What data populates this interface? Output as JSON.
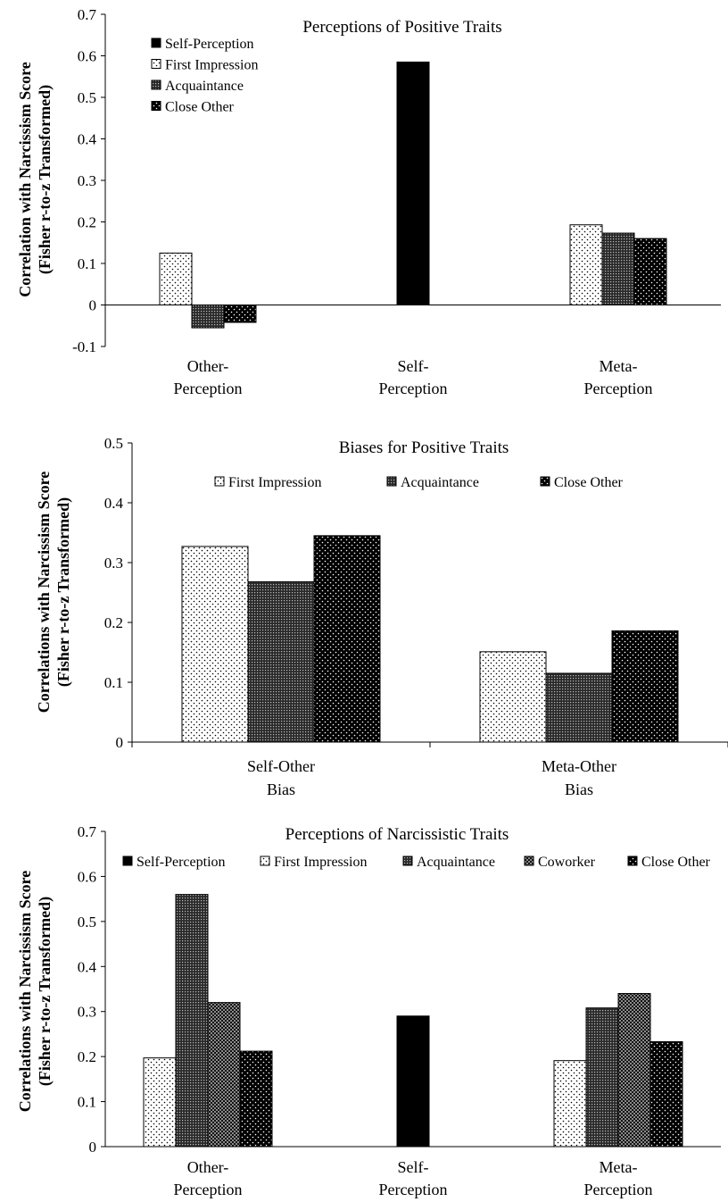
{
  "patterns": {
    "Self-Perception": "solid",
    "First Impression": "sparse-dots",
    "Acquaintance": "dense-grid",
    "Coworker": "checker",
    "Close Other": "white-dots"
  },
  "chart_data": [
    {
      "type": "bar",
      "title": "Perceptions of Positive Traits",
      "ylabel": [
        "Correlation with Narcissism Score",
        "(Fisher r-to-z Transformed)"
      ],
      "xlabel": "",
      "ylim": [
        -0.1,
        0.7
      ],
      "yticks": [
        -0.1,
        0,
        0.1,
        0.2,
        0.3,
        0.4,
        0.5,
        0.6,
        0.7
      ],
      "yticklabels": [
        "-0.1",
        "0",
        "0.1",
        "0.2",
        "0.3",
        "0.4",
        "0.5",
        "0.6",
        "0.7"
      ],
      "categories": [
        [
          "Other-",
          "Perception"
        ],
        [
          "Self-",
          "Perception"
        ],
        [
          "Meta-",
          "Perception"
        ]
      ],
      "legend": [
        "Self-Perception",
        "First Impression",
        "Acquaintance",
        "Close Other"
      ],
      "legend_placement": "top-left, stacked",
      "grid": false,
      "groups": [
        [
          {
            "series": "First Impression",
            "value": 0.125
          },
          {
            "series": "Acquaintance",
            "value": -0.055
          },
          {
            "series": "Close Other",
            "value": -0.042
          }
        ],
        [
          {
            "series": "Self-Perception",
            "value": 0.585
          }
        ],
        [
          {
            "series": "First Impression",
            "value": 0.193
          },
          {
            "series": "Acquaintance",
            "value": 0.173
          },
          {
            "series": "Close Other",
            "value": 0.16
          }
        ]
      ]
    },
    {
      "type": "bar",
      "title": "Biases for Positive Traits",
      "ylabel": [
        "Correlations with Narcissism Score",
        "(Fisher r-to-z Transformed)"
      ],
      "xlabel": "",
      "ylim": [
        0,
        0.5
      ],
      "yticks": [
        0,
        0.1,
        0.2,
        0.3,
        0.4,
        0.5
      ],
      "yticklabels": [
        "0",
        "0.1",
        "0.2",
        "0.3",
        "0.4",
        "0.5"
      ],
      "categories": [
        [
          "Self-Other",
          "Bias"
        ],
        [
          "Meta-Other",
          "Bias"
        ]
      ],
      "legend": [
        "First Impression",
        "Acquaintance",
        "Close Other"
      ],
      "legend_placement": "top, horizontal",
      "grid": false,
      "groups": [
        [
          {
            "series": "First Impression",
            "value": 0.327
          },
          {
            "series": "Acquaintance",
            "value": 0.268
          },
          {
            "series": "Close Other",
            "value": 0.345
          }
        ],
        [
          {
            "series": "First Impression",
            "value": 0.151
          },
          {
            "series": "Acquaintance",
            "value": 0.115
          },
          {
            "series": "Close Other",
            "value": 0.186
          }
        ]
      ]
    },
    {
      "type": "bar",
      "title": "Perceptions of Narcissistic Traits",
      "ylabel": [
        "Correlations with Narcissism Score",
        "(Fisher r-to-z Transformed)"
      ],
      "xlabel": "",
      "ylim": [
        0,
        0.7
      ],
      "yticks": [
        0,
        0.1,
        0.2,
        0.3,
        0.4,
        0.5,
        0.6,
        0.7
      ],
      "yticklabels": [
        "0",
        "0.1",
        "0.2",
        "0.3",
        "0.4",
        "0.5",
        "0.6",
        "0.7"
      ],
      "categories": [
        [
          "Other-",
          "Perception"
        ],
        [
          "Self-",
          "Perception"
        ],
        [
          "Meta-",
          "Perception"
        ]
      ],
      "legend": [
        "Self-Perception",
        "First Impression",
        "Acquaintance",
        "Coworker",
        "Close Other"
      ],
      "legend_placement": "top, horizontal",
      "grid": false,
      "groups": [
        [
          {
            "series": "First Impression",
            "value": 0.197
          },
          {
            "series": "Acquaintance",
            "value": 0.56
          },
          {
            "series": "Coworker",
            "value": 0.32
          },
          {
            "series": "Close Other",
            "value": 0.212
          }
        ],
        [
          {
            "series": "Self-Perception",
            "value": 0.29
          }
        ],
        [
          {
            "series": "First Impression",
            "value": 0.191
          },
          {
            "series": "Acquaintance",
            "value": 0.308
          },
          {
            "series": "Coworker",
            "value": 0.34
          },
          {
            "series": "Close Other",
            "value": 0.233
          }
        ]
      ]
    }
  ]
}
